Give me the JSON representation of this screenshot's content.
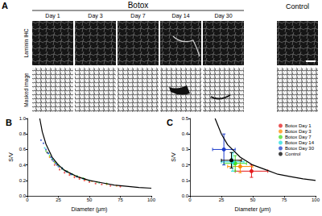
{
  "panel_a": {
    "label": "A",
    "group": "Botox",
    "group_columns": [
      "Day 1",
      "Day 3",
      "Day 7",
      "Day 14",
      "Day 30"
    ],
    "other_columns": [
      "Control"
    ],
    "rows": [
      "Laminin IHC",
      "Masked image"
    ]
  },
  "chart_data": [
    {
      "type": "scatter",
      "title": "B",
      "xlabel": "Diameter (μm)",
      "ylabel": "S/V",
      "xlim": [
        0,
        100
      ],
      "xticks": [
        0,
        25,
        50,
        75,
        100
      ],
      "ylim": [
        0,
        1.0
      ],
      "yticks": [
        {
          "value": 0,
          "label": "0.0"
        },
        0.2,
        0.4,
        0.6,
        0.8,
        {
          "value": 1.0,
          "label": "1.0"
        }
      ],
      "series": [
        {
          "name": "Control",
          "color": "#000000",
          "marker": "circle",
          "x": [
            16,
            20,
            24,
            28,
            32,
            36,
            40,
            46
          ],
          "values": [
            0.56,
            0.47,
            0.4,
            0.35,
            0.31,
            0.28,
            0.25,
            0.22
          ]
        },
        {
          "name": "Botox Day 1",
          "color": "#e41a1c",
          "marker": "circle",
          "x": [
            22,
            26,
            30,
            34,
            38,
            42,
            46,
            50,
            55,
            60,
            67,
            75
          ],
          "values": [
            0.4,
            0.34,
            0.3,
            0.27,
            0.24,
            0.22,
            0.2,
            0.18,
            0.16,
            0.15,
            0.13,
            0.12
          ]
        },
        {
          "name": "Botox Day 3",
          "color": "#ff8c00",
          "marker": "circle",
          "x": [
            18,
            22,
            26,
            30,
            34,
            38,
            42,
            47,
            52,
            58,
            64,
            72
          ],
          "values": [
            0.5,
            0.43,
            0.37,
            0.33,
            0.29,
            0.26,
            0.24,
            0.21,
            0.19,
            0.17,
            0.15,
            0.13
          ]
        },
        {
          "name": "Botox Day 7",
          "color": "#44dd22",
          "marker": "circle",
          "x": [
            15,
            18,
            22,
            25,
            28,
            32,
            36,
            40,
            45,
            50,
            56,
            64
          ],
          "values": [
            0.58,
            0.52,
            0.44,
            0.4,
            0.36,
            0.32,
            0.28,
            0.26,
            0.23,
            0.2,
            0.18,
            0.16
          ]
        },
        {
          "name": "Botox Day 14",
          "color": "#22dddd",
          "marker": "circle",
          "x": [
            14,
            17,
            20,
            23,
            26,
            29,
            32,
            36,
            40,
            45,
            50,
            58
          ],
          "values": [
            0.62,
            0.55,
            0.48,
            0.42,
            0.38,
            0.34,
            0.31,
            0.28,
            0.25,
            0.22,
            0.2,
            0.17
          ]
        },
        {
          "name": "Botox Day 30",
          "color": "#1f3fcc",
          "marker": "circle",
          "x": [
            11,
            13,
            15,
            17,
            19,
            21,
            23,
            25,
            28,
            31,
            35,
            40
          ],
          "values": [
            0.72,
            0.68,
            0.6,
            0.55,
            0.5,
            0.45,
            0.42,
            0.38,
            0.36,
            0.32,
            0.28,
            0.25
          ]
        },
        {
          "type": "line",
          "color": "#000000",
          "line_style": "solid",
          "x": [
            10,
            12,
            15,
            20,
            25,
            30,
            40,
            50,
            60,
            70,
            80,
            90,
            100
          ],
          "values": [
            1.0,
            0.83,
            0.67,
            0.5,
            0.4,
            0.33,
            0.25,
            0.2,
            0.17,
            0.14,
            0.125,
            0.11,
            0.1
          ]
        }
      ]
    },
    {
      "type": "scatter",
      "title": "C",
      "xlabel": "Diameter (μm)",
      "ylabel": "S/V",
      "xlim": [
        0,
        100
      ],
      "xticks": [
        0,
        25,
        50,
        75,
        100
      ],
      "ylim": [
        0,
        0.5
      ],
      "yticks": [
        {
          "value": 0,
          "label": "0.0"
        },
        0.1,
        0.2,
        0.3,
        0.4,
        0.5
      ],
      "legend": "upper right",
      "series": [
        {
          "name": "Botox Day 1",
          "color": "#e41a1c",
          "marker": "circle",
          "x": [
            49
          ],
          "values": [
            0.16
          ],
          "xerr": [
            13
          ],
          "yerr": [
            0.04
          ]
        },
        {
          "name": "Botox Day 3",
          "color": "#ff8c00",
          "marker": "circle",
          "x": [
            40
          ],
          "values": [
            0.19
          ],
          "xerr": [
            10
          ],
          "yerr": [
            0.04
          ]
        },
        {
          "name": "Botox Day 7",
          "color": "#44dd22",
          "marker": "circle",
          "x": [
            36
          ],
          "values": [
            0.21
          ],
          "xerr": [
            9
          ],
          "yerr": [
            0.05
          ]
        },
        {
          "name": "Botox Day 14",
          "color": "#22dddd",
          "marker": "circle",
          "x": [
            34
          ],
          "values": [
            0.22
          ],
          "xerr": [
            9
          ],
          "yerr": [
            0.06
          ]
        },
        {
          "name": "Botox Day 30",
          "color": "#1f3fcc",
          "marker": "circle",
          "x": [
            27
          ],
          "values": [
            0.3
          ],
          "xerr": [
            9
          ],
          "yerr": [
            0.1
          ]
        },
        {
          "name": "Control",
          "color": "#000000",
          "marker": "circle",
          "x": [
            33
          ],
          "values": [
            0.23
          ],
          "xerr": [
            8
          ],
          "yerr": [
            0.05
          ]
        },
        {
          "type": "line",
          "color": "#000000",
          "line_style": "solid",
          "x": [
            20,
            25,
            30,
            40,
            50,
            60,
            70,
            80,
            90,
            100
          ],
          "values": [
            0.5,
            0.4,
            0.33,
            0.25,
            0.2,
            0.17,
            0.14,
            0.125,
            0.11,
            0.1
          ]
        }
      ]
    }
  ]
}
